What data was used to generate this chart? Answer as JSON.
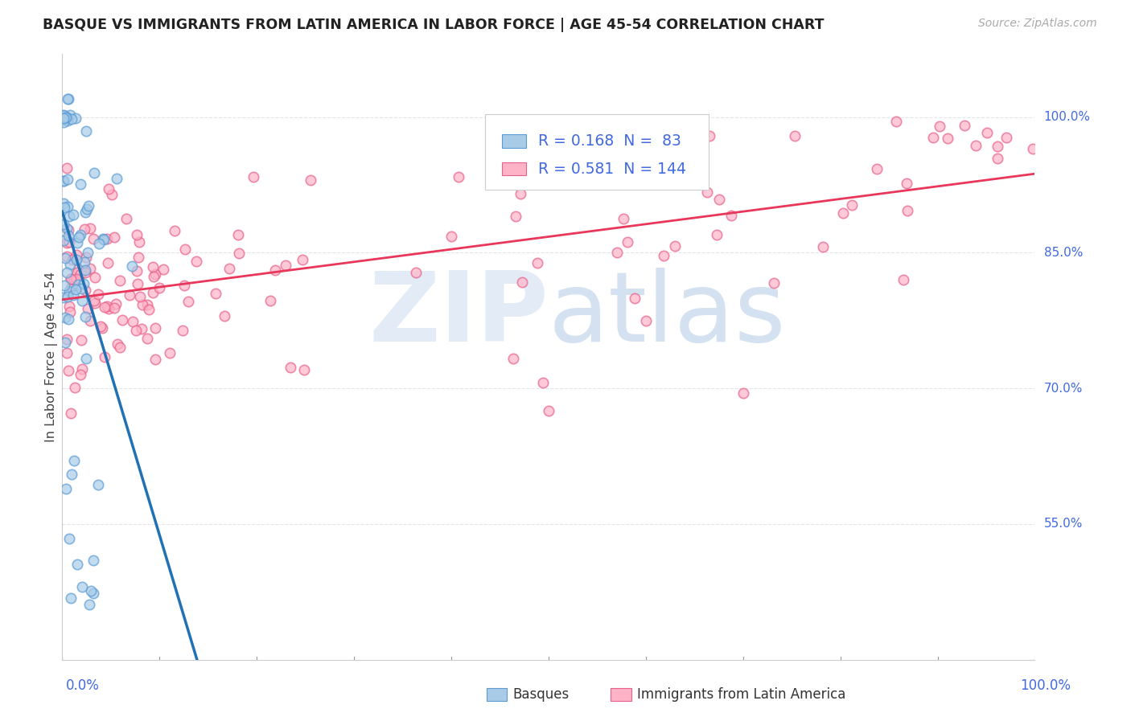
{
  "title": "BASQUE VS IMMIGRANTS FROM LATIN AMERICA IN LABOR FORCE | AGE 45-54 CORRELATION CHART",
  "source": "Source: ZipAtlas.com",
  "ylabel": "In Labor Force | Age 45-54",
  "watermark_zip": "ZIP",
  "watermark_atlas": "atlas",
  "legend": {
    "basque_R": "0.168",
    "basque_N": "83",
    "latin_R": "0.581",
    "latin_N": "144"
  },
  "yticks": [
    0.55,
    0.7,
    0.85,
    1.0
  ],
  "ytick_labels": [
    "55.0%",
    "70.0%",
    "85.0%",
    "100.0%"
  ],
  "colors": {
    "basque_fill": "#a8cce8",
    "basque_edge": "#5b9bd5",
    "basque_line": "#2171b5",
    "basque_line_dash": "#aaaaaa",
    "latin_fill": "#ffb3c6",
    "latin_edge": "#e8608a",
    "latin_line": "#e8375a",
    "title": "#222222",
    "axis_label": "#444444",
    "tick_right": "#4169e1",
    "tick_bottom": "#4169e1",
    "watermark_zip": "#ccddf0",
    "watermark_atlas": "#a0bde0",
    "source": "#aaaaaa",
    "grid": "#e5e5e5",
    "legend_border": "#cccccc",
    "legend_bg": "#ffffff"
  },
  "xlim": [
    0.0,
    1.0
  ],
  "ylim": [
    0.4,
    1.07
  ]
}
